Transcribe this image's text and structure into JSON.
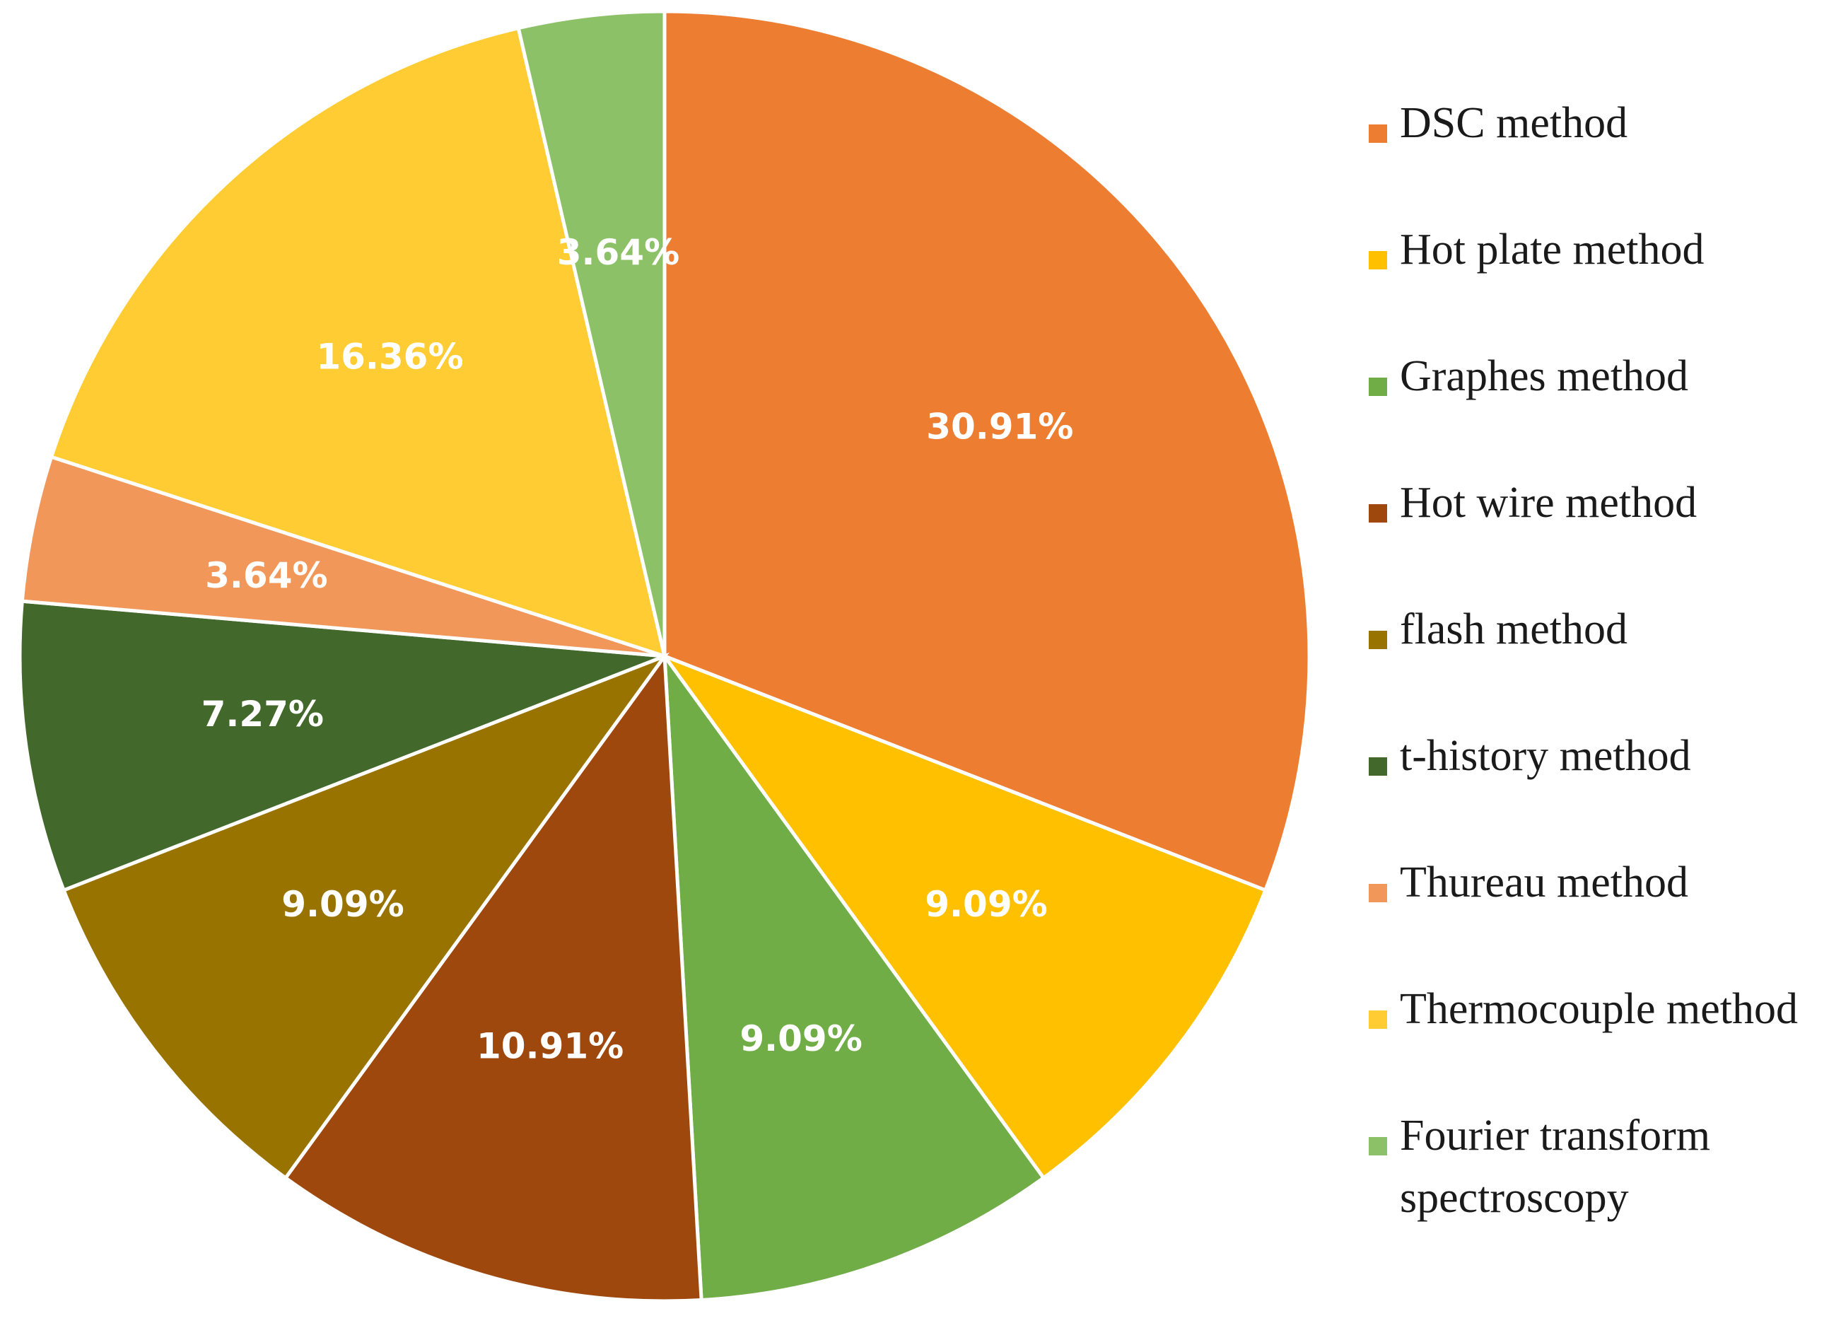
{
  "chart_data": {
    "type": "pie",
    "title": "",
    "start_angle_deg": 0,
    "direction": "clockwise",
    "slices": [
      {
        "label": "DSC method",
        "value": 30.91,
        "value_label": "30.91%",
        "color": "#ED7D31"
      },
      {
        "label": "Hot plate method",
        "value": 9.09,
        "value_label": "9.09%",
        "color": "#FFC000"
      },
      {
        "label": "Graphes method",
        "value": 9.09,
        "value_label": "9.09%",
        "color": "#70AD47"
      },
      {
        "label": "Hot wire method",
        "value": 10.91,
        "value_label": "10.91%",
        "color": "#9E480E"
      },
      {
        "label": "flash method",
        "value": 9.09,
        "value_label": "9.09%",
        "color": "#997300"
      },
      {
        "label": "t-history method",
        "value": 7.27,
        "value_label": "7.27%",
        "color": "#43682B"
      },
      {
        "label": "Thureau method",
        "value": 3.64,
        "value_label": "3.64%",
        "color": "#F1975A"
      },
      {
        "label": "Thermocouple method",
        "value": 16.36,
        "value_label": "16.36%",
        "color": "#FFCD33"
      },
      {
        "label": "Fourier transform\nspectroscopy",
        "value": 3.64,
        "value_label": "3.64%",
        "color": "#8CC168"
      }
    ],
    "legend_position": "right"
  }
}
